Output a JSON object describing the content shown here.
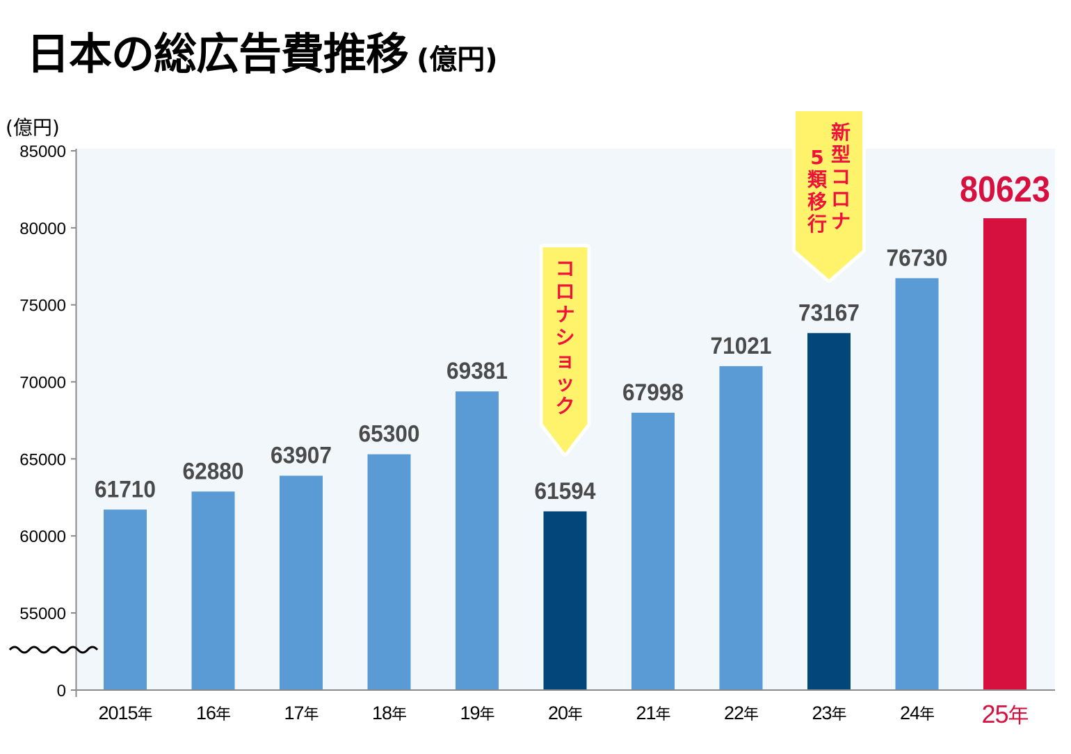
{
  "title": "日本の総広告費推移",
  "title_unit": "(億円)",
  "colors": {
    "bar_default": "#5b9bd5",
    "bar_event": "#03477a",
    "bar_highlight": "#d6113f",
    "plot_bg": "#f2f7fc",
    "annotation_fill": "#fff36b",
    "annotation_text": "#f0103a",
    "value_label": "#4a4a4a"
  },
  "chart_data": {
    "type": "bar",
    "title": "日本の総広告費推移",
    "xlabel": "",
    "ylabel": "(億円)",
    "ylim": [
      0,
      85000
    ],
    "axis_break": {
      "from": 0,
      "to": 55000
    },
    "yticks": [
      "85000",
      "80000",
      "75000",
      "70000",
      "65000",
      "60000",
      "55000",
      "0"
    ],
    "ytick_values": [
      85000,
      80000,
      75000,
      70000,
      65000,
      60000,
      55000,
      0
    ],
    "grid": false,
    "categories": [
      "2015年",
      "16年",
      "17年",
      "18年",
      "19年",
      "20年",
      "21年",
      "22年",
      "23年",
      "24年",
      "25年"
    ],
    "category_numbers": [
      "2015",
      "16",
      "17",
      "18",
      "19",
      "20",
      "21",
      "22",
      "23",
      "24",
      "25"
    ],
    "category_suffix": "年",
    "values": [
      61710,
      62880,
      63907,
      65300,
      69381,
      61594,
      67998,
      71021,
      73167,
      76730,
      80623
    ],
    "value_labels": [
      "61710",
      "62880",
      "63907",
      "65300",
      "69381",
      "61594",
      "67998",
      "71021",
      "73167",
      "76730",
      "80623"
    ],
    "bar_styles": [
      "default",
      "default",
      "default",
      "default",
      "default",
      "event",
      "default",
      "default",
      "event",
      "default",
      "highlight"
    ],
    "annotations": [
      {
        "category": "20年",
        "lines": [
          "コロナショック"
        ]
      },
      {
        "category": "23年",
        "lines": [
          "新型コロナ",
          "5類移行"
        ]
      }
    ]
  }
}
